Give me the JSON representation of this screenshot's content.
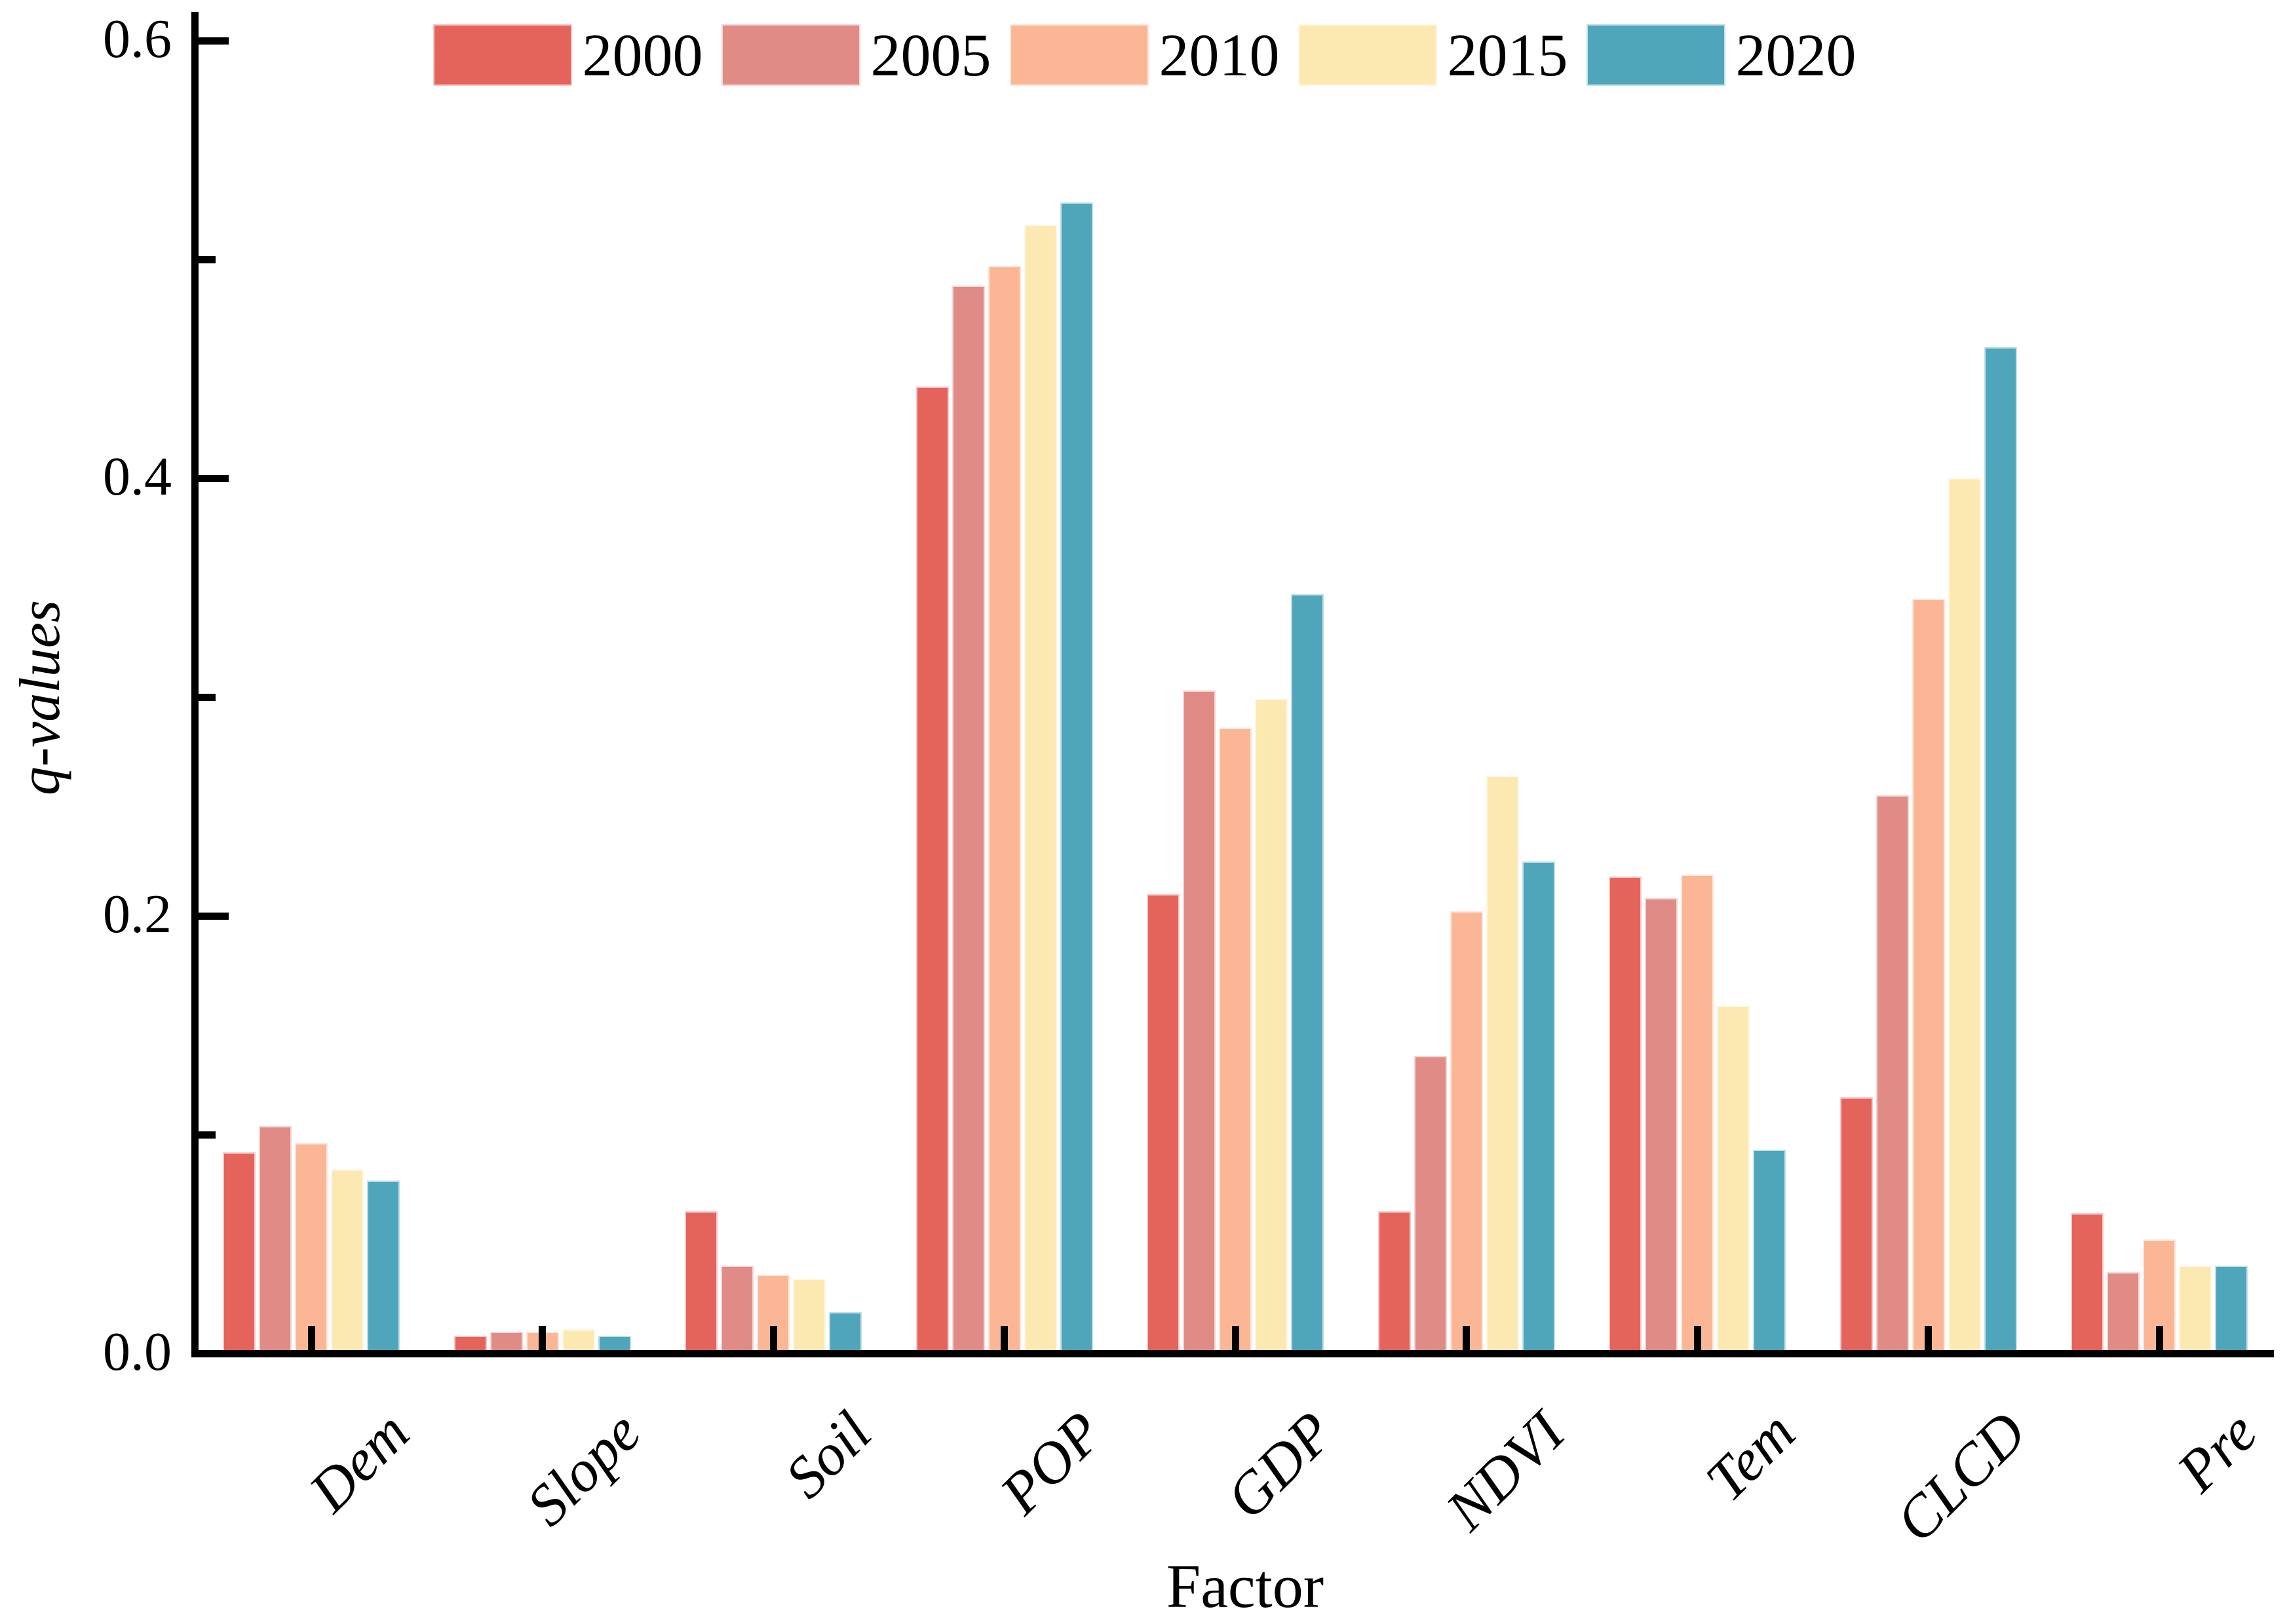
{
  "chart_data": {
    "type": "bar",
    "title": "",
    "xlabel": "Factor",
    "ylabel": "q-values",
    "categories": [
      "Dem",
      "Slope",
      "Soil",
      "POP",
      "GDP",
      "NDVI",
      "Tem",
      "CLCD",
      "Pre"
    ],
    "series": [
      {
        "name": "2000",
        "color": "#E4645C",
        "values": [
          0.092,
          0.008,
          0.065,
          0.442,
          0.21,
          0.065,
          0.218,
          0.117,
          0.064
        ]
      },
      {
        "name": "2005",
        "color": "#E08B85",
        "values": [
          0.104,
          0.01,
          0.04,
          0.488,
          0.303,
          0.136,
          0.208,
          0.255,
          0.037
        ]
      },
      {
        "name": "2010",
        "color": "#FBB795",
        "values": [
          0.096,
          0.01,
          0.036,
          0.497,
          0.286,
          0.202,
          0.219,
          0.345,
          0.052
        ]
      },
      {
        "name": "2015",
        "color": "#FCE8B1",
        "values": [
          0.084,
          0.011,
          0.034,
          0.516,
          0.299,
          0.264,
          0.159,
          0.4,
          0.04
        ]
      },
      {
        "name": "2020",
        "color": "#4FA5BA",
        "values": [
          0.079,
          0.008,
          0.019,
          0.526,
          0.347,
          0.225,
          0.093,
          0.46,
          0.04
        ]
      }
    ],
    "ylim": [
      0,
      0.6
    ],
    "yticks_major": [
      {
        "value": 0.0,
        "label": "0.0"
      },
      {
        "value": 0.2,
        "label": "0.2"
      },
      {
        "value": 0.4,
        "label": "0.4"
      },
      {
        "value": 0.6,
        "label": "0.6"
      }
    ],
    "yticks_minor": [
      0.1,
      0.3,
      0.5
    ],
    "grid": false,
    "legend_position": "top-center",
    "axis_color": "#000000"
  }
}
